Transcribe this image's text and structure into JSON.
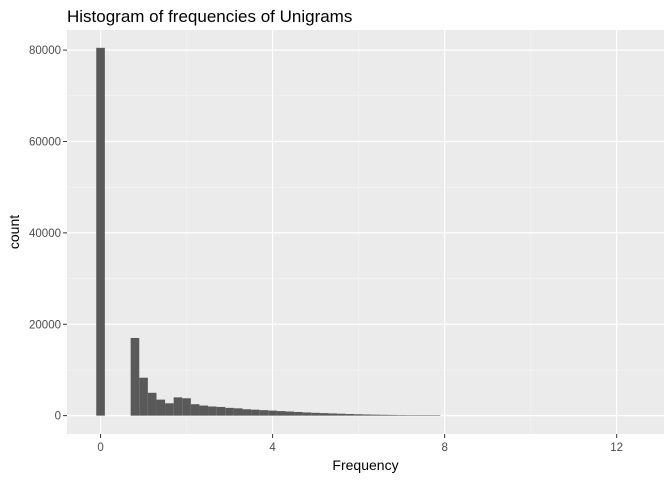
{
  "chart_data": {
    "type": "bar",
    "title": "Histogram of frequencies of Unigrams",
    "xlabel": "Frequency",
    "ylabel": "count",
    "xlim": [
      -0.78,
      13.1
    ],
    "ylim": [
      -4020,
      84400
    ],
    "x_ticks": [
      0,
      4,
      8,
      12
    ],
    "x_minor_ticks": [
      2,
      6,
      10
    ],
    "y_ticks": [
      0,
      20000,
      40000,
      60000,
      80000
    ],
    "y_minor_ticks": [
      10000,
      30000,
      50000,
      70000
    ],
    "x_tick_labels": [
      "0",
      "4",
      "8",
      "12"
    ],
    "y_tick_labels": [
      "0",
      "20000",
      "40000",
      "60000",
      "80000"
    ],
    "bin_width": 0.2,
    "bins": [
      {
        "x": 0.0,
        "count": 80500
      },
      {
        "x": 0.2,
        "count": 0
      },
      {
        "x": 0.4,
        "count": 0
      },
      {
        "x": 0.6,
        "count": 0
      },
      {
        "x": 0.8,
        "count": 17000
      },
      {
        "x": 1.0,
        "count": 8300
      },
      {
        "x": 1.2,
        "count": 5000
      },
      {
        "x": 1.4,
        "count": 3500
      },
      {
        "x": 1.6,
        "count": 2700
      },
      {
        "x": 1.8,
        "count": 4000
      },
      {
        "x": 2.0,
        "count": 3800
      },
      {
        "x": 2.2,
        "count": 2500
      },
      {
        "x": 2.4,
        "count": 2200
      },
      {
        "x": 2.6,
        "count": 2000
      },
      {
        "x": 2.8,
        "count": 1900
      },
      {
        "x": 3.0,
        "count": 1700
      },
      {
        "x": 3.2,
        "count": 1600
      },
      {
        "x": 3.4,
        "count": 1400
      },
      {
        "x": 3.6,
        "count": 1300
      },
      {
        "x": 3.8,
        "count": 1200
      },
      {
        "x": 4.0,
        "count": 1100
      },
      {
        "x": 4.2,
        "count": 1000
      },
      {
        "x": 4.4,
        "count": 900
      },
      {
        "x": 4.6,
        "count": 800
      },
      {
        "x": 4.8,
        "count": 700
      },
      {
        "x": 5.0,
        "count": 620
      },
      {
        "x": 5.2,
        "count": 550
      },
      {
        "x": 5.4,
        "count": 480
      },
      {
        "x": 5.6,
        "count": 420
      },
      {
        "x": 5.8,
        "count": 360
      },
      {
        "x": 6.0,
        "count": 300
      },
      {
        "x": 6.2,
        "count": 250
      },
      {
        "x": 6.4,
        "count": 210
      },
      {
        "x": 6.6,
        "count": 180
      },
      {
        "x": 6.8,
        "count": 150
      },
      {
        "x": 7.0,
        "count": 120
      },
      {
        "x": 7.2,
        "count": 100
      },
      {
        "x": 7.4,
        "count": 80
      },
      {
        "x": 7.6,
        "count": 60
      },
      {
        "x": 7.8,
        "count": 40
      }
    ],
    "grid": true,
    "colors": {
      "panel": "#ebebeb",
      "grid_major": "#ffffff",
      "grid_minor": "#f5f5f5",
      "bar": "#595959",
      "tick_mark": "#333333",
      "tick_label": "#4d4d4d",
      "text": "#000000"
    }
  }
}
